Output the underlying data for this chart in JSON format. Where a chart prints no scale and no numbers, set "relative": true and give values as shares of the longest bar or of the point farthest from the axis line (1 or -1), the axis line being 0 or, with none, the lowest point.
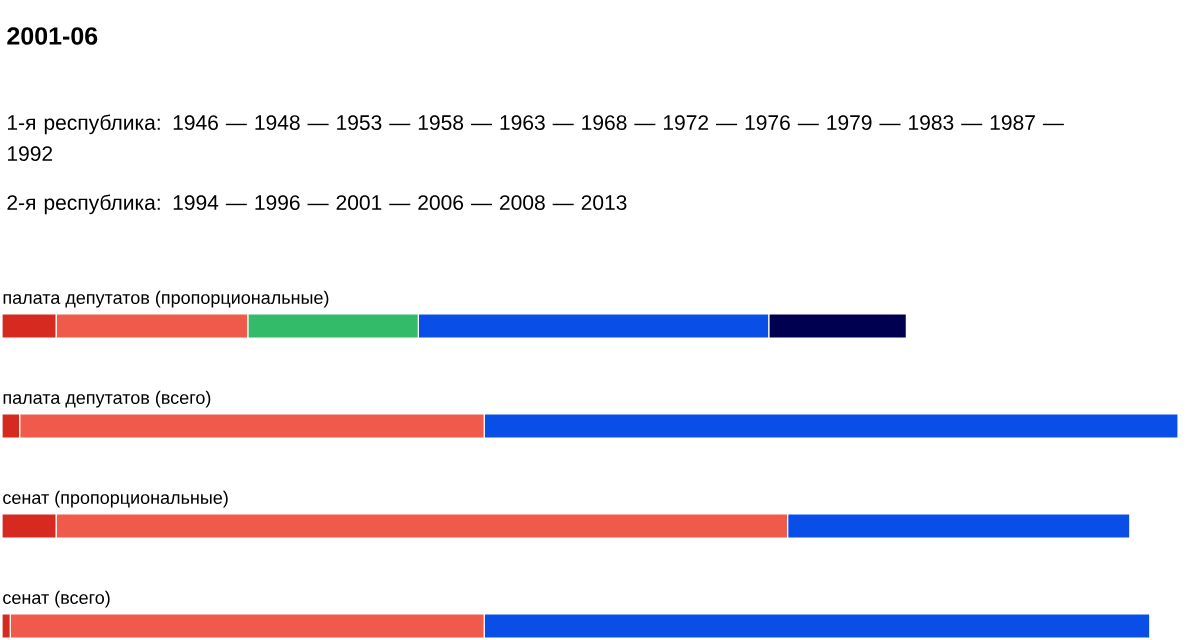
{
  "chart_data": {
    "type": "bar",
    "title": "2001-06",
    "orientation": "horizontal",
    "stacked": true,
    "relative": true,
    "annotations": [
      "1-я республика: 1946 — 1948 — 1953 — 1958 — 1963 — 1968 — 1972 — 1976 — 1979 — 1983 — 1987 — 1992",
      "2-я республика: 1994 — 1996 — 2001 — 2006 — 2008 — 2013"
    ],
    "categories": [
      "палата депутатов (пропорциональные)",
      "палата депутатов (всего)",
      "сенат (пропорциональные)",
      "сенат (всего)"
    ],
    "series": [
      {
        "color": "#d62a20",
        "values": [
          0.046,
          0.015,
          0.046,
          0.007
        ]
      },
      {
        "color": "#f05a4a",
        "values": [
          0.163,
          0.395,
          0.622,
          0.403
        ]
      },
      {
        "color": "#33bb6a",
        "values": [
          0.145,
          null,
          null,
          null
        ]
      },
      {
        "color": "#0a4ee8",
        "values": [
          0.298,
          0.59,
          0.291,
          0.566
        ]
      },
      {
        "color": "#000050",
        "values": [
          0.117,
          null,
          null,
          null
        ]
      }
    ]
  }
}
